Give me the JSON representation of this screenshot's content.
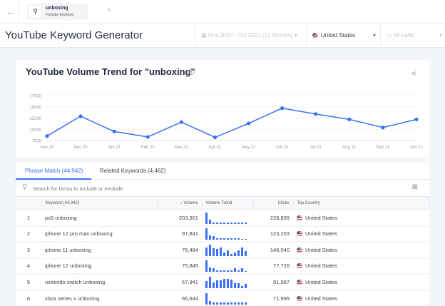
{
  "header": {
    "keyword": "unboxing",
    "keyword_type": "Youtube Keyword"
  },
  "page_title": "YouTube Keyword Generator",
  "filters": {
    "date_range": "Nov 2020 - Oct 2021 (12 Months)",
    "country": "United States",
    "traffic": "All traffic"
  },
  "chart_data": {
    "type": "line",
    "title": "YouTube Volume Trend for \"unboxing\"",
    "categories": [
      "Nov 20",
      "Dec 20",
      "Jan 21",
      "Feb 21",
      "Mar 21",
      "Apr 21",
      "May 21",
      "Jun 21",
      "Jul 21",
      "Aug 21",
      "Sep 21",
      "Oct 21"
    ],
    "values": [
      8500,
      12900,
      9500,
      8300,
      11600,
      8200,
      11300,
      14700,
      13400,
      12200,
      10400,
      12200
    ],
    "yticks": [
      7500,
      10000,
      12500,
      15000,
      17500
    ],
    "ylim": [
      7500,
      17500
    ],
    "color": "#3b6ff5",
    "grid": true
  },
  "tabs": [
    {
      "label": "Phrase Match (44,942)"
    },
    {
      "label": "Related Keywords (4,462)"
    }
  ],
  "search": {
    "placeholder": "Search for terms to include or exclude"
  },
  "table": {
    "headers": [
      "Keyword (44,942)",
      "Volume",
      "Volume Trend",
      "Clicks",
      "Top Country"
    ],
    "rows": [
      {
        "n": "1",
        "kw": "ps5 unboxing",
        "vol": "203,301",
        "clicks": "228,839",
        "country": "United States",
        "trend": [
          1,
          0.35,
          0.1,
          0.1,
          0.1,
          0.1,
          0.1,
          0.1,
          0.1,
          0.1,
          0.1,
          0.1
        ]
      },
      {
        "n": "2",
        "kw": "iphone 12 pro max unboxing",
        "vol": "97,841",
        "clicks": "123,203",
        "country": "United States",
        "trend": [
          1,
          0.4,
          0.3,
          0.15,
          0.15,
          0.15,
          0.15,
          0.15,
          0.15,
          0.15,
          0.1,
          0.1
        ]
      },
      {
        "n": "3",
        "kw": "iphone 11 unboxing",
        "vol": "76,484",
        "clicks": "146,040",
        "country": "United States",
        "trend": [
          0.75,
          1,
          0.7,
          0.6,
          0.75,
          0.3,
          0.5,
          0.2,
          0.3,
          0.5,
          0.75,
          0.4
        ]
      },
      {
        "n": "4",
        "kw": "iphone 12 unboxing",
        "vol": "75,845",
        "clicks": "77,726",
        "country": "United States",
        "trend": [
          1,
          0.4,
          0.3,
          0.15,
          0.15,
          0.15,
          0.15,
          0.15,
          0.3,
          0.15,
          0.3,
          0.1
        ]
      },
      {
        "n": "5",
        "kw": "nintendo switch unboxing",
        "vol": "67,941",
        "clicks": "81,987",
        "country": "United States",
        "trend": [
          0.6,
          1,
          0.5,
          0.65,
          0.65,
          0.8,
          0.8,
          0.75,
          0.4,
          0.45,
          0.2,
          0.35
        ]
      },
      {
        "n": "6",
        "kw": "xbox series x unboxing",
        "vol": "66,644",
        "clicks": "71,999",
        "country": "United States",
        "trend": [
          1,
          0.3,
          0.2,
          0.2,
          0.2,
          0.2,
          0.2,
          0.2,
          0.2,
          0.2,
          0.2,
          0.2
        ]
      }
    ]
  }
}
